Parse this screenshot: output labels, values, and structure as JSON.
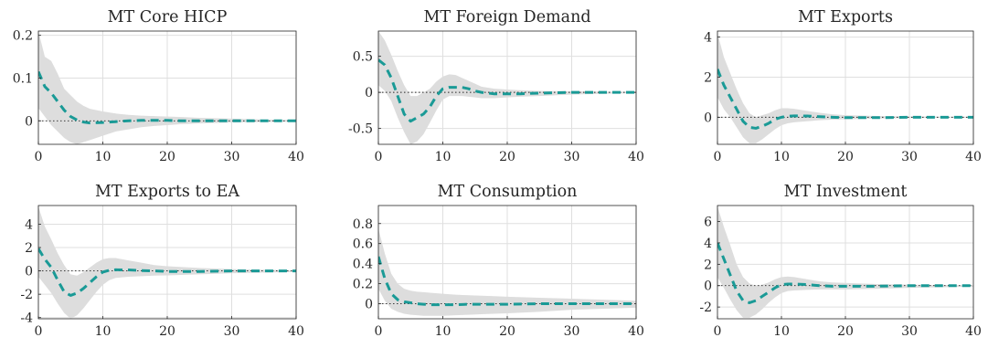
{
  "chart_data": [
    {
      "type": "line",
      "title": "MT Core HICP",
      "xlim": [
        0,
        40
      ],
      "ylim": [
        -0.055,
        0.21
      ],
      "x_ticks": [
        0,
        10,
        20,
        30,
        40
      ],
      "y_ticks": [
        0,
        0.1,
        0.2
      ],
      "y_tick_labels": [
        "0",
        "0.1",
        "0.2"
      ],
      "grid": true,
      "zero_line": true,
      "x": [
        0,
        1,
        2,
        3,
        4,
        5,
        6,
        7,
        8,
        10,
        12,
        14,
        16,
        18,
        20,
        22,
        25,
        30,
        35,
        40
      ],
      "series": [
        {
          "role": "median",
          "values": [
            0.115,
            0.08,
            0.065,
            0.045,
            0.025,
            0.01,
            0.002,
            -0.003,
            -0.005,
            -0.004,
            -0.002,
            0.0,
            0.001,
            0.001,
            0.001,
            0.0,
            0.0,
            0.0,
            0.0,
            0.0
          ]
        },
        {
          "role": "band-upper",
          "values": [
            0.21,
            0.15,
            0.14,
            0.11,
            0.075,
            0.06,
            0.045,
            0.035,
            0.028,
            0.022,
            0.017,
            0.014,
            0.012,
            0.011,
            0.01,
            0.009,
            0.007,
            0.005,
            0.003,
            0.002
          ]
        },
        {
          "role": "band-lower",
          "values": [
            0.03,
            0.01,
            -0.01,
            -0.025,
            -0.04,
            -0.05,
            -0.055,
            -0.05,
            -0.045,
            -0.035,
            -0.025,
            -0.02,
            -0.015,
            -0.012,
            -0.01,
            -0.008,
            -0.006,
            -0.004,
            -0.003,
            -0.002
          ]
        }
      ]
    },
    {
      "type": "line",
      "title": "MT Foreign Demand",
      "xlim": [
        0,
        40
      ],
      "ylim": [
        -0.72,
        0.85
      ],
      "x_ticks": [
        0,
        10,
        20,
        30,
        40
      ],
      "y_ticks": [
        -0.5,
        0,
        0.5
      ],
      "y_tick_labels": [
        "-0.5",
        "0",
        "0.5"
      ],
      "grid": true,
      "zero_line": true,
      "x": [
        0,
        1,
        2,
        3,
        4,
        5,
        6,
        7,
        8,
        9,
        10,
        11,
        12,
        13,
        14,
        15,
        16,
        18,
        20,
        22,
        25,
        30,
        35,
        40
      ],
      "series": [
        {
          "role": "median",
          "values": [
            0.45,
            0.38,
            0.2,
            -0.05,
            -0.3,
            -0.4,
            -0.35,
            -0.3,
            -0.2,
            -0.05,
            0.05,
            0.07,
            0.07,
            0.07,
            0.05,
            0.02,
            0.0,
            -0.02,
            -0.02,
            -0.02,
            -0.01,
            0.0,
            0.0,
            0.0
          ]
        },
        {
          "role": "band-upper",
          "values": [
            0.85,
            0.72,
            0.52,
            0.3,
            0.1,
            -0.05,
            -0.05,
            0.0,
            0.05,
            0.15,
            0.22,
            0.25,
            0.24,
            0.2,
            0.16,
            0.12,
            0.08,
            0.05,
            0.04,
            0.03,
            0.02,
            0.015,
            0.01,
            0.01
          ]
        },
        {
          "role": "band-lower",
          "values": [
            0.1,
            0.02,
            -0.12,
            -0.35,
            -0.55,
            -0.72,
            -0.68,
            -0.58,
            -0.42,
            -0.25,
            -0.1,
            -0.05,
            -0.05,
            -0.05,
            -0.06,
            -0.07,
            -0.08,
            -0.08,
            -0.07,
            -0.06,
            -0.05,
            -0.03,
            -0.02,
            -0.01
          ]
        }
      ]
    },
    {
      "type": "line",
      "title": "MT Exports",
      "xlim": [
        0,
        40
      ],
      "ylim": [
        -1.35,
        4.3
      ],
      "x_ticks": [
        0,
        10,
        20,
        30,
        40
      ],
      "y_ticks": [
        0,
        2,
        4
      ],
      "y_tick_labels": [
        "0",
        "2",
        "4"
      ],
      "grid": true,
      "zero_line": true,
      "x": [
        0,
        1,
        2,
        3,
        4,
        5,
        6,
        7,
        8,
        9,
        10,
        11,
        12,
        14,
        16,
        18,
        20,
        25,
        30,
        35,
        40
      ],
      "series": [
        {
          "role": "median",
          "values": [
            2.4,
            1.6,
            1.0,
            0.4,
            -0.2,
            -0.5,
            -0.55,
            -0.45,
            -0.3,
            -0.1,
            0.0,
            0.05,
            0.07,
            0.06,
            0.03,
            0.0,
            -0.02,
            -0.02,
            0.0,
            0.0,
            0.0
          ]
        },
        {
          "role": "band-upper",
          "values": [
            4.2,
            3.0,
            2.2,
            1.4,
            0.7,
            0.2,
            0.0,
            0.1,
            0.2,
            0.35,
            0.45,
            0.45,
            0.42,
            0.32,
            0.22,
            0.15,
            0.1,
            0.06,
            0.04,
            0.03,
            0.02
          ]
        },
        {
          "role": "band-lower",
          "values": [
            1.0,
            0.4,
            0.0,
            -0.5,
            -1.0,
            -1.3,
            -1.3,
            -1.1,
            -0.85,
            -0.6,
            -0.4,
            -0.3,
            -0.25,
            -0.2,
            -0.15,
            -0.12,
            -0.1,
            -0.07,
            -0.04,
            -0.03,
            -0.02
          ]
        }
      ]
    },
    {
      "type": "line",
      "title": "MT Exports to EA",
      "xlim": [
        0,
        40
      ],
      "ylim": [
        -4.1,
        5.6
      ],
      "x_ticks": [
        0,
        10,
        20,
        30,
        40
      ],
      "y_ticks": [
        -4,
        -2,
        0,
        2,
        4
      ],
      "y_tick_labels": [
        "-4",
        "-2",
        "0",
        "2",
        "4"
      ],
      "grid": true,
      "zero_line": true,
      "x": [
        0,
        1,
        2,
        3,
        4,
        5,
        6,
        7,
        8,
        9,
        10,
        11,
        12,
        14,
        16,
        18,
        20,
        25,
        30,
        35,
        40
      ],
      "series": [
        {
          "role": "median",
          "values": [
            1.9,
            1.0,
            0.3,
            -0.8,
            -1.8,
            -2.1,
            -1.9,
            -1.5,
            -1.0,
            -0.5,
            -0.1,
            0.05,
            0.1,
            0.08,
            0.03,
            0.0,
            -0.05,
            -0.05,
            0.0,
            0.0,
            0.0
          ]
        },
        {
          "role": "band-upper",
          "values": [
            5.5,
            3.8,
            2.7,
            1.5,
            0.5,
            -0.3,
            -0.4,
            -0.1,
            0.3,
            0.7,
            1.0,
            1.1,
            1.1,
            0.9,
            0.7,
            0.5,
            0.4,
            0.25,
            0.15,
            0.1,
            0.05
          ]
        },
        {
          "role": "band-lower",
          "values": [
            -0.5,
            -1.2,
            -1.9,
            -2.8,
            -3.6,
            -4.1,
            -3.8,
            -3.2,
            -2.5,
            -1.8,
            -1.2,
            -0.8,
            -0.6,
            -0.5,
            -0.45,
            -0.4,
            -0.38,
            -0.3,
            -0.2,
            -0.15,
            -0.1
          ]
        }
      ]
    },
    {
      "type": "line",
      "title": "MT Consumption",
      "xlim": [
        0,
        40
      ],
      "ylim": [
        -0.15,
        0.98
      ],
      "x_ticks": [
        0,
        10,
        20,
        30,
        40
      ],
      "y_ticks": [
        0,
        0.2,
        0.4,
        0.6,
        0.8
      ],
      "y_tick_labels": [
        "0",
        "0.2",
        "0.4",
        "0.6",
        "0.8"
      ],
      "grid": true,
      "zero_line": true,
      "x": [
        0,
        1,
        2,
        3,
        4,
        5,
        6,
        7,
        8,
        10,
        12,
        14,
        16,
        18,
        20,
        25,
        30,
        35,
        40
      ],
      "series": [
        {
          "role": "median",
          "values": [
            0.47,
            0.25,
            0.1,
            0.04,
            0.02,
            0.01,
            0.0,
            -0.005,
            -0.01,
            -0.01,
            -0.01,
            -0.005,
            -0.005,
            -0.005,
            -0.005,
            0.0,
            0.0,
            0.0,
            0.0
          ]
        },
        {
          "role": "band-upper",
          "values": [
            0.75,
            0.5,
            0.3,
            0.2,
            0.15,
            0.13,
            0.12,
            0.115,
            0.11,
            0.1,
            0.09,
            0.085,
            0.08,
            0.075,
            0.07,
            0.06,
            0.05,
            0.04,
            0.03
          ]
        },
        {
          "role": "band-lower",
          "values": [
            0.15,
            0.03,
            -0.05,
            -0.08,
            -0.1,
            -0.11,
            -0.115,
            -0.12,
            -0.12,
            -0.12,
            -0.115,
            -0.11,
            -0.105,
            -0.1,
            -0.095,
            -0.08,
            -0.06,
            -0.05,
            -0.04
          ]
        }
      ]
    },
    {
      "type": "line",
      "title": "MT Investment",
      "xlim": [
        0,
        40
      ],
      "ylim": [
        -3.1,
        7.5
      ],
      "x_ticks": [
        0,
        10,
        20,
        30,
        40
      ],
      "y_ticks": [
        -2,
        0,
        2,
        4,
        6
      ],
      "y_tick_labels": [
        "-2",
        "0",
        "2",
        "4",
        "6"
      ],
      "grid": true,
      "zero_line": true,
      "x": [
        0,
        1,
        2,
        3,
        4,
        5,
        6,
        7,
        8,
        9,
        10,
        11,
        12,
        14,
        16,
        18,
        20,
        25,
        30,
        35,
        40
      ],
      "series": [
        {
          "role": "median",
          "values": [
            4.0,
            2.5,
            1.0,
            -0.5,
            -1.4,
            -1.6,
            -1.4,
            -1.0,
            -0.6,
            -0.2,
            0.1,
            0.15,
            0.15,
            0.1,
            0.0,
            -0.05,
            -0.05,
            -0.05,
            0.0,
            0.0,
            0.0
          ]
        },
        {
          "role": "band-upper",
          "values": [
            7.4,
            5.5,
            3.8,
            2.0,
            0.8,
            0.2,
            0.0,
            0.1,
            0.3,
            0.6,
            0.8,
            0.85,
            0.8,
            0.6,
            0.4,
            0.3,
            0.25,
            0.15,
            0.1,
            0.05,
            0.03
          ]
        },
        {
          "role": "band-lower",
          "values": [
            0.8,
            -0.2,
            -1.3,
            -2.3,
            -3.0,
            -3.0,
            -2.7,
            -2.2,
            -1.6,
            -1.1,
            -0.7,
            -0.5,
            -0.45,
            -0.4,
            -0.35,
            -0.35,
            -0.35,
            -0.3,
            -0.2,
            -0.15,
            -0.1
          ]
        }
      ]
    }
  ],
  "style": {
    "median_color": "#1a9a96",
    "band_color": "#dddddd",
    "grid_color": "#dfdfdf",
    "axis_color": "#262626",
    "zero_line_color": "#262626"
  }
}
